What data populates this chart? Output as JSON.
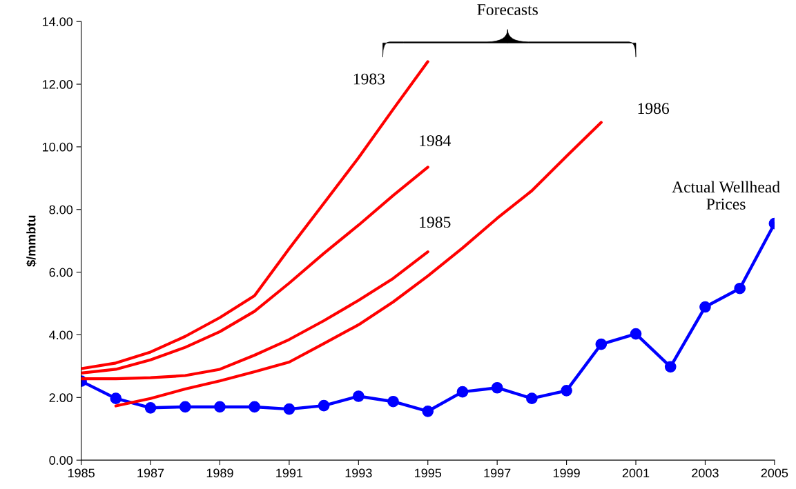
{
  "chart_data": {
    "type": "line",
    "ylabel": "$/mmbtu",
    "x": [
      1985,
      1986,
      1987,
      1988,
      1989,
      1990,
      1991,
      1992,
      1993,
      1994,
      1995,
      1996,
      1997,
      1998,
      1999,
      2000,
      2001,
      2002,
      2003,
      2004,
      2005
    ],
    "series": [
      {
        "name": "1983",
        "color": "#ff0000",
        "marker": "none",
        "x": [
          1985,
          1986,
          1987,
          1988,
          1989,
          1990,
          1991,
          1992,
          1993,
          1994,
          1995
        ],
        "values": [
          2.92,
          3.1,
          3.45,
          3.95,
          4.55,
          5.25,
          6.75,
          8.2,
          9.65,
          11.2,
          12.72
        ]
      },
      {
        "name": "1984",
        "color": "#ff0000",
        "marker": "none",
        "x": [
          1985,
          1986,
          1987,
          1988,
          1989,
          1990,
          1991,
          1992,
          1993,
          1994,
          1995
        ],
        "values": [
          2.78,
          2.9,
          3.2,
          3.6,
          4.1,
          4.75,
          5.65,
          6.6,
          7.5,
          8.45,
          9.35
        ]
      },
      {
        "name": "1985",
        "color": "#ff0000",
        "marker": "none",
        "x": [
          1985,
          1986,
          1987,
          1988,
          1989,
          1990,
          1991,
          1992,
          1993,
          1994,
          1995
        ],
        "values": [
          2.6,
          2.6,
          2.63,
          2.7,
          2.9,
          3.35,
          3.85,
          4.45,
          5.1,
          5.8,
          6.65
        ]
      },
      {
        "name": "1986",
        "color": "#ff0000",
        "marker": "none",
        "x": [
          1986,
          1987,
          1988,
          1989,
          1990,
          1991,
          1992,
          1993,
          1994,
          1995,
          1996,
          1997,
          1998,
          1999,
          2000
        ],
        "values": [
          1.73,
          1.97,
          2.27,
          2.53,
          2.82,
          3.13,
          3.72,
          4.32,
          5.05,
          5.88,
          6.77,
          7.72,
          8.6,
          9.7,
          10.78
        ]
      },
      {
        "name": "Actual Wellhead\nPrices",
        "color": "#0000ff",
        "marker": "circle",
        "values": [
          2.52,
          1.97,
          1.67,
          1.7,
          1.7,
          1.7,
          1.63,
          1.74,
          2.04,
          1.87,
          1.56,
          2.18,
          2.31,
          1.97,
          2.22,
          3.7,
          4.03,
          2.98,
          4.89,
          5.48,
          7.55
        ]
      }
    ],
    "annotations": [
      "Forecasts"
    ],
    "xlim": [
      1985,
      2005
    ],
    "xticks": [
      1985,
      1987,
      1989,
      1991,
      1993,
      1995,
      1997,
      1999,
      2001,
      2003,
      2005
    ],
    "ylim": [
      0,
      14
    ],
    "yticks": [
      {
        "value": 0,
        "label": "0.00"
      },
      {
        "value": 2,
        "label": "2.00"
      },
      {
        "value": 4,
        "label": "4.00"
      },
      {
        "value": 6,
        "label": "6.00"
      },
      {
        "value": 8,
        "label": "8.00"
      },
      {
        "value": 10,
        "label": "10.00"
      },
      {
        "value": 12,
        "label": "12.00"
      },
      {
        "value": 14,
        "label": "14.00"
      }
    ],
    "grid": false,
    "legend": false,
    "line_style": "solid"
  }
}
